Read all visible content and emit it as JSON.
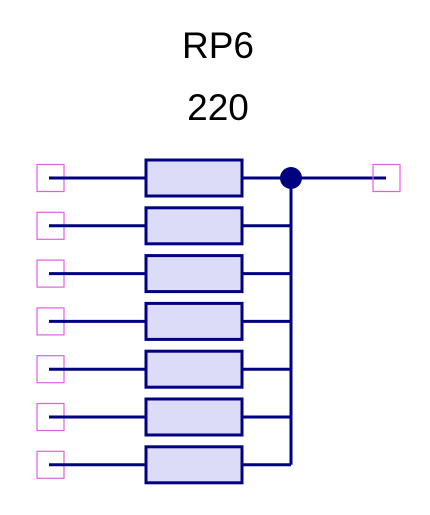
{
  "component": {
    "designator": "RP6",
    "value": "220",
    "resistor_count": 7
  },
  "colors": {
    "wire": "#000080",
    "resistor_fill": "#dcdcf8",
    "resistor_stroke": "#000080",
    "pin_stroke": "#e060e0",
    "junction": "#000080",
    "text": "#000000"
  }
}
